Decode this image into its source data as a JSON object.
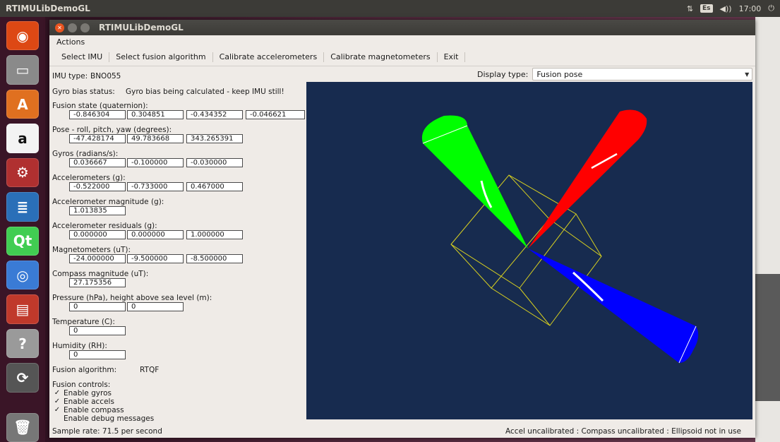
{
  "panel": {
    "app_name": "RTIMULibDemoGL",
    "keyboard": "Es",
    "volume": "◀))",
    "time": "17:00",
    "network": "⇅",
    "power": "⏻"
  },
  "window": {
    "title": "RTIMULibDemoGL",
    "menu": [
      "Actions"
    ],
    "toolbar": [
      "Select IMU",
      "Select fusion algorithm",
      "Calibrate accelerometers",
      "Calibrate magnetometers",
      "Exit"
    ]
  },
  "left": {
    "imu_type_label": "IMU type:",
    "imu_type_value": "BNO055",
    "gyro_bias_label": "Gyro bias status:",
    "gyro_bias_value": "Gyro bias being calculated - keep IMU still!",
    "fusion_state_label": "Fusion state (quaternion):",
    "fusion_state": [
      "-0.846304",
      "0.304851",
      "-0.434352",
      "-0.046621"
    ],
    "pose_label": "Pose - roll, pitch, yaw (degrees):",
    "pose": [
      "-47.428174",
      "49.783668",
      "343.265391"
    ],
    "gyros_label": "Gyros (radians/s):",
    "gyros": [
      "0.036667",
      "-0.100000",
      "-0.030000"
    ],
    "accels_label": "Accelerometers (g):",
    "accels": [
      "-0.522000",
      "-0.733000",
      "0.467000"
    ],
    "accel_mag_label": "Accelerometer magnitude (g):",
    "accel_mag": "1.013835",
    "accel_res_label": "Accelerometer residuals (g):",
    "accel_res": [
      "0.000000",
      "0.000000",
      "1.000000"
    ],
    "mags_label": "Magnetometers (uT):",
    "mags": [
      "-24.000000",
      "-9.500000",
      "-8.500000"
    ],
    "compass_mag_label": "Compass magnitude (uT):",
    "compass_mag": "27.175356",
    "pressure_label": "Pressure (hPa), height above sea level (m):",
    "pressure": [
      "0",
      "0"
    ],
    "temperature_label": "Temperature (C):",
    "temperature": "0",
    "humidity_label": "Humidity (RH):",
    "humidity": "0",
    "fusion_alg_label": "Fusion algorithm:",
    "fusion_alg_value": "RTQF",
    "fusion_controls_label": "Fusion controls:",
    "controls": [
      {
        "label": "Enable gyros",
        "checked": true
      },
      {
        "label": "Enable accels",
        "checked": true
      },
      {
        "label": "Enable compass",
        "checked": true
      },
      {
        "label": "Enable debug messages",
        "checked": false
      }
    ]
  },
  "display": {
    "label": "Display type:",
    "selected": "Fusion pose"
  },
  "status": {
    "left": "Sample rate: 71.5 per second",
    "right": "Accel uncalibrated : Compass uncalibrated : Ellipsoid not in use"
  },
  "colors": {
    "viewport_bg": "#172b4f",
    "cube": "#d8d020",
    "cone_x": "#ff0000",
    "cone_y": "#00ff00",
    "cone_z": "#0000ff"
  }
}
